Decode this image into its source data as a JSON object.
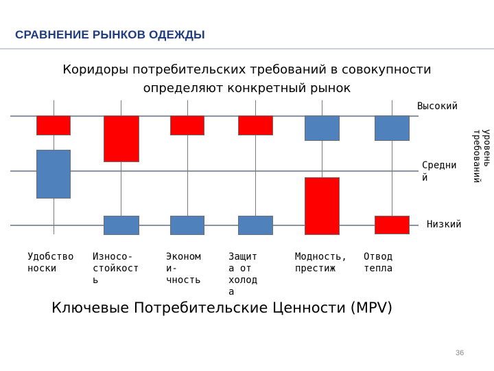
{
  "title": "СРАВНЕНИЕ РЫНКОВ ОДЕЖДЫ",
  "subtitle_line1": "Коридоры потребительских требований в совокупности",
  "subtitle_line2": "определяют конкретный рынок",
  "levels": {
    "high": "Высокий",
    "medium_line1": "Средни",
    "medium_line2": "й",
    "low": "Низкий"
  },
  "axis_label_line1": "уровень",
  "axis_label_line2": "требований",
  "categories": [
    {
      "lines": [
        "Удобство",
        "носки"
      ],
      "bars": [
        {
          "color": "red",
          "from": "high",
          "to": "high"
        },
        {
          "color": "blue",
          "from": "medium",
          "to": "medium"
        }
      ]
    },
    {
      "lines": [
        "Износо-",
        "стойкост",
        "ь"
      ],
      "bars": [
        {
          "color": "red",
          "from": "high",
          "to": "medium"
        },
        {
          "color": "blue",
          "from": "low",
          "to": "low"
        }
      ]
    },
    {
      "lines": [
        "Эконом",
        "и-",
        "чность"
      ],
      "bars": [
        {
          "color": "red",
          "from": "high",
          "to": "high"
        },
        {
          "color": "blue",
          "from": "low",
          "to": "low"
        }
      ]
    },
    {
      "lines": [
        "Защит",
        "а от",
        "холод",
        "а"
      ],
      "bars": [
        {
          "color": "red",
          "from": "high",
          "to": "high"
        },
        {
          "color": "blue",
          "from": "low",
          "to": "low"
        }
      ]
    },
    {
      "lines": [
        "Модность,",
        "престиж"
      ],
      "bars": [
        {
          "color": "blue",
          "from": "high",
          "to": "high"
        },
        {
          "color": "red",
          "from": "medium",
          "to": "low"
        }
      ]
    },
    {
      "lines": [
        "Отвод",
        "тепла"
      ],
      "bars": [
        {
          "color": "blue",
          "from": "high",
          "to": "high"
        },
        {
          "color": "red",
          "from": "low",
          "to": "low"
        }
      ]
    }
  ],
  "bottom_label": "Ключевые Потребительские Ценности (MPV)",
  "page_number": "36",
  "colors": {
    "red": "#ff0000",
    "blue": "#4f81bd",
    "title": "#1f3b82"
  }
}
